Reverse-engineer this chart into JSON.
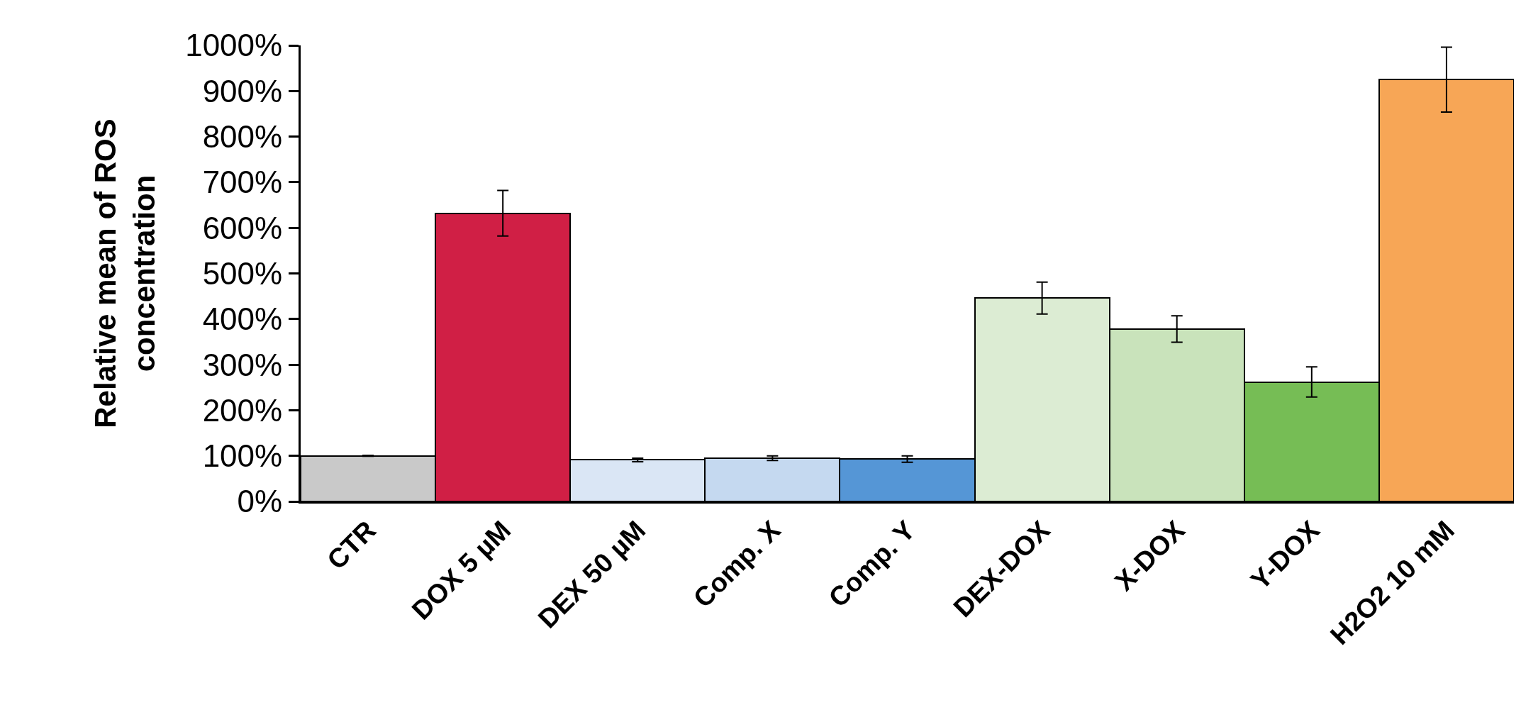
{
  "chart_data": {
    "type": "bar",
    "ylabel": "Relative mean of ROS concentration",
    "categories": [
      "CTR",
      "DOX 5 µM",
      "DEX 50 µM",
      "Comp. X",
      "Comp. Y",
      "DEX-DOX",
      "X-DOX",
      "Y-DOX",
      "H2O2 10 mM"
    ],
    "values": [
      100,
      632,
      91,
      95,
      93,
      446,
      378,
      262,
      925
    ],
    "errors": [
      1,
      50,
      4,
      5,
      7,
      35,
      29,
      33,
      71
    ],
    "colors": [
      "#c9c9c9",
      "#d01f45",
      "#dae6f5",
      "#c5d9f0",
      "#5596d6",
      "#dcecd3",
      "#c9e3bb",
      "#76bd55",
      "#f7a656"
    ],
    "ylim": [
      0,
      1000
    ],
    "yticks": [
      {
        "value": 0,
        "label": "0%"
      },
      {
        "value": 100,
        "label": "100%"
      },
      {
        "value": 200,
        "label": "200%"
      },
      {
        "value": 300,
        "label": "300%"
      },
      {
        "value": 400,
        "label": "400%"
      },
      {
        "value": 500,
        "label": "500%"
      },
      {
        "value": 600,
        "label": "600%"
      },
      {
        "value": 700,
        "label": "700%"
      },
      {
        "value": 800,
        "label": "800%"
      },
      {
        "value": 900,
        "label": "900%"
      },
      {
        "value": 1000,
        "label": "1000%"
      }
    ],
    "grid": false
  }
}
